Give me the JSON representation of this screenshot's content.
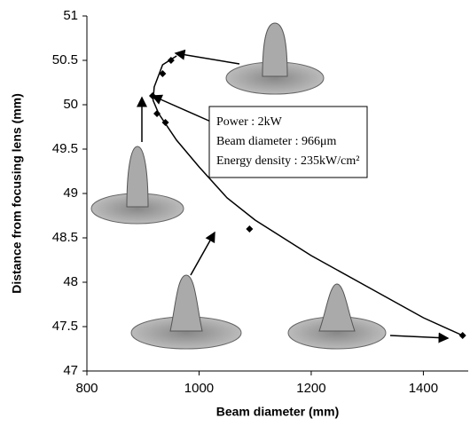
{
  "chart_data": {
    "type": "scatter",
    "x_label": "Beam diameter (mm)",
    "y_label": "Distance from focusing lens (mm)",
    "x": [
      950,
      935,
      917,
      925,
      940,
      1090,
      1470
    ],
    "values": [
      50.5,
      50.35,
      50.1,
      49.9,
      49.8,
      48.6,
      47.4
    ],
    "color": "#000000",
    "curve": {
      "x": [
        960,
        935,
        920,
        918,
        928,
        960,
        1000,
        1050,
        1100,
        1200,
        1300,
        1400,
        1470
      ],
      "values": [
        50.55,
        50.45,
        50.2,
        50.05,
        49.9,
        49.6,
        49.3,
        48.95,
        48.7,
        48.3,
        47.95,
        47.6,
        47.4
      ]
    },
    "annotation": [
      "Power : 2kW",
      "Beam diameter : 966μm",
      "Energy density : 235kW/cm²"
    ],
    "xlim": [
      800,
      1480
    ],
    "xticks": [
      800,
      1000,
      1200,
      1400
    ],
    "ylim": [
      47,
      51
    ],
    "yticks": [
      47,
      47.5,
      48,
      48.5,
      49,
      49.5,
      50,
      50.5,
      51
    ],
    "grid": false
  }
}
